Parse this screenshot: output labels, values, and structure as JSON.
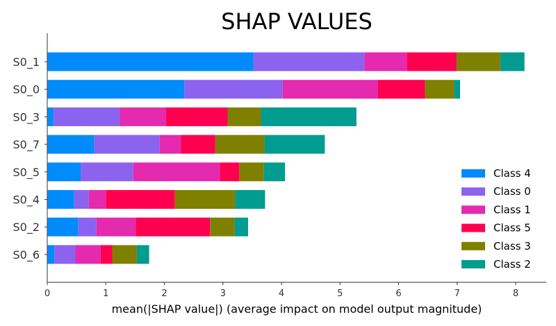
{
  "chart_data": {
    "type": "bar",
    "orientation": "horizontal",
    "stacked": true,
    "title": "SHAP VALUES",
    "xlabel": "mean(|SHAP value|) (average impact on model output magnitude)",
    "ylabel": "",
    "xlim": [
      0,
      8.5
    ],
    "xticks": [
      0,
      1,
      2,
      3,
      4,
      5,
      6,
      7,
      8
    ],
    "grid": false,
    "legend_position": "lower-right",
    "categories": [
      "S0_1",
      "S0_0",
      "S0_3",
      "S0_7",
      "S0_5",
      "S0_4",
      "S0_2",
      "S0_6"
    ],
    "series": [
      {
        "name": "Class 4",
        "color": "#008bfb",
        "values": [
          3.52,
          2.34,
          0.11,
          0.8,
          0.57,
          0.46,
          0.53,
          0.12
        ]
      },
      {
        "name": "Class 0",
        "color": "#8c63ef",
        "values": [
          1.9,
          1.68,
          1.13,
          1.12,
          0.9,
          0.25,
          0.31,
          0.36
        ]
      },
      {
        "name": "Class 1",
        "color": "#e42aae",
        "values": [
          0.72,
          1.63,
          0.79,
          0.36,
          1.48,
          0.29,
          0.67,
          0.43
        ]
      },
      {
        "name": "Class 5",
        "color": "#ff0051",
        "values": [
          0.85,
          0.8,
          1.05,
          0.59,
          0.33,
          1.18,
          1.27,
          0.2
        ]
      },
      {
        "name": "Class 3",
        "color": "#808000",
        "values": [
          0.75,
          0.5,
          0.57,
          0.84,
          0.42,
          1.03,
          0.42,
          0.42
        ]
      },
      {
        "name": "Class 2",
        "color": "#009c8f",
        "values": [
          0.41,
          0.1,
          1.63,
          1.03,
          0.36,
          0.51,
          0.23,
          0.21
        ]
      }
    ],
    "legend_order": [
      "Class 4",
      "Class 0",
      "Class 1",
      "Class 5",
      "Class 3",
      "Class 2"
    ]
  }
}
